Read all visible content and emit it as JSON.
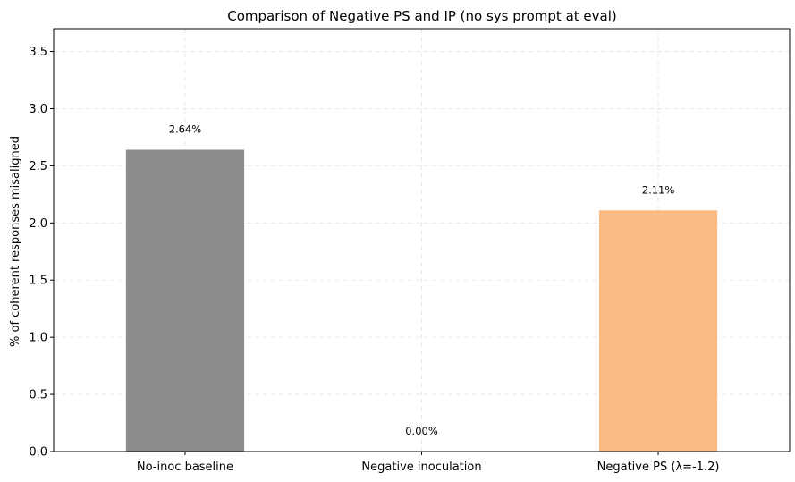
{
  "chart_data": {
    "type": "bar",
    "title": "Comparison of Negative PS and IP (no sys prompt at eval)",
    "xlabel": "",
    "ylabel": "% of coherent responses misaligned",
    "categories": [
      "No-inoc baseline",
      "Negative inoculation",
      "Negative PS (λ=-1.2)"
    ],
    "values": [
      2.64,
      0.0,
      2.11
    ],
    "data_labels": [
      "2.64%",
      "0.00%",
      "2.11%"
    ],
    "colors": [
      "#8c8c8c",
      "#1f77b4",
      "#fdbb84"
    ],
    "ylim": [
      0,
      3.7
    ],
    "yticks": [
      0.0,
      0.5,
      1.0,
      1.5,
      2.0,
      2.5,
      3.0,
      3.5
    ],
    "ytick_labels": [
      "0.0",
      "0.5",
      "1.0",
      "1.5",
      "2.0",
      "2.5",
      "3.0",
      "3.5"
    ],
    "grid": true,
    "legend": "none"
  }
}
